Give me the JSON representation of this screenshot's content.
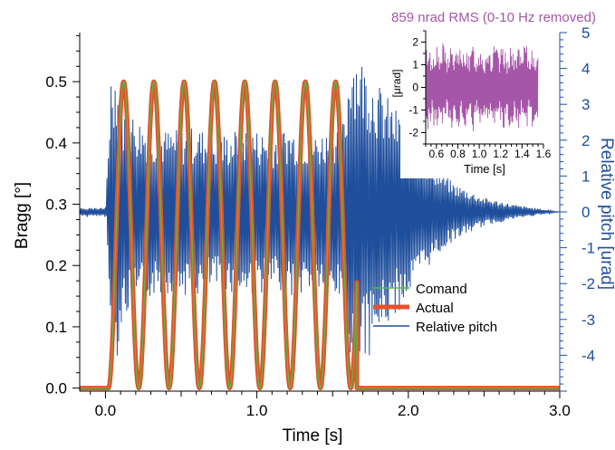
{
  "chart_data": [
    {
      "type": "line",
      "xlabel": "Time [s]",
      "ylabel": "Bragg [°]",
      "y2label": "Relative pitch [urad]",
      "xlim": [
        -0.17,
        3.0
      ],
      "ylim": [
        -0.005,
        0.58
      ],
      "y2lim": [
        -5.0,
        5.0
      ],
      "x_ticks": [
        "0.0",
        "1.0",
        "2.0",
        "3.0"
      ],
      "y_ticks": [
        "0.0",
        "0.1",
        "0.2",
        "0.3",
        "0.4",
        "0.5"
      ],
      "y2_ticks": [
        "-4",
        "-3",
        "-2",
        "-1",
        "0",
        "1",
        "2",
        "3",
        "4",
        "5"
      ],
      "legend_position": "bottom-right",
      "legend": [
        "Comand",
        "Actual",
        "Relative pitch"
      ],
      "series": [
        {
          "name": "Comand",
          "axis": "left",
          "color": "#55bb44",
          "x": [
            0.0,
            0.02,
            0.06,
            0.12,
            0.16,
            0.22,
            0.28,
            0.32,
            0.38,
            0.44,
            0.48,
            0.54,
            0.6,
            0.64,
            0.7,
            0.76,
            0.8,
            0.86,
            0.92,
            0.96,
            1.02,
            1.08,
            1.12,
            1.18,
            1.24,
            1.28,
            1.34,
            1.4,
            1.44,
            1.5,
            1.56,
            1.6,
            1.66,
            3.0
          ],
          "y": [
            0.0,
            0.0,
            0.25,
            0.5,
            0.25,
            0.0,
            0.25,
            0.5,
            0.25,
            0.0,
            0.25,
            0.5,
            0.25,
            0.0,
            0.25,
            0.5,
            0.25,
            0.0,
            0.25,
            0.5,
            0.25,
            0.0,
            0.25,
            0.5,
            0.25,
            0.0,
            0.25,
            0.5,
            0.25,
            0.0,
            0.25,
            0.5,
            0.0,
            0.0
          ]
        },
        {
          "name": "Actual",
          "axis": "left",
          "color": "#e8502a",
          "x": [
            0.0,
            0.02,
            0.06,
            0.12,
            0.16,
            0.22,
            0.28,
            0.32,
            0.38,
            0.44,
            0.48,
            0.54,
            0.6,
            0.64,
            0.7,
            0.76,
            0.8,
            0.86,
            0.92,
            0.96,
            1.02,
            1.08,
            1.12,
            1.18,
            1.24,
            1.28,
            1.34,
            1.4,
            1.44,
            1.5,
            1.56,
            1.6,
            1.66,
            3.0
          ],
          "y": [
            0.0,
            0.0,
            0.25,
            0.5,
            0.25,
            0.0,
            0.25,
            0.5,
            0.25,
            0.0,
            0.25,
            0.5,
            0.25,
            0.0,
            0.25,
            0.5,
            0.25,
            0.0,
            0.25,
            0.5,
            0.25,
            0.0,
            0.25,
            0.5,
            0.25,
            0.0,
            0.25,
            0.5,
            0.25,
            0.0,
            0.25,
            0.5,
            0.0,
            0.0
          ]
        },
        {
          "name": "Relative pitch",
          "axis": "right",
          "color": "#1f4e9c",
          "x": [
            -0.17,
            -0.1,
            0.0,
            0.04,
            0.08,
            0.12,
            0.2,
            0.3,
            0.4,
            0.5,
            0.6,
            0.7,
            0.8,
            0.9,
            1.0,
            1.1,
            1.2,
            1.3,
            1.4,
            1.5,
            1.58,
            1.62,
            1.66,
            1.7,
            1.8,
            1.9,
            2.0,
            2.1,
            2.2,
            2.3,
            2.5,
            2.7,
            3.0
          ],
          "y": [
            0.0,
            0.1,
            -0.1,
            4.4,
            -4.0,
            3.0,
            -2.7,
            2.4,
            -2.3,
            2.3,
            -2.4,
            2.2,
            -2.2,
            2.4,
            -2.3,
            2.2,
            -2.4,
            2.3,
            -2.2,
            2.4,
            -2.6,
            4.9,
            -4.6,
            4.3,
            -3.6,
            3.0,
            -2.4,
            1.7,
            -1.2,
            0.8,
            -0.4,
            0.2,
            0.0
          ]
        }
      ]
    },
    {
      "type": "line",
      "title": "859 nrad RMS (0-10 Hz removed)",
      "xlabel": "Time [s]",
      "ylabel": "[μrad]",
      "xlim": [
        0.5,
        1.6
      ],
      "ylim": [
        -2.5,
        2.5
      ],
      "x_ticks": [
        "0.6",
        "0.8",
        "1.0",
        "1.2",
        "1.4",
        "1.6"
      ],
      "y_ticks": [
        "-2",
        "-1",
        "0",
        "1",
        "2"
      ],
      "series": [
        {
          "color": "#a656a8",
          "x": [
            0.5,
            0.6,
            0.7,
            0.8,
            0.9,
            1.0,
            1.1,
            1.2,
            1.3,
            1.4,
            1.5,
            1.55
          ],
          "y": [
            0.4,
            -1.7,
            1.6,
            -1.8,
            1.5,
            -1.9,
            1.7,
            -1.6,
            1.8,
            -1.7,
            1.9,
            -1.8
          ]
        }
      ]
    }
  ]
}
